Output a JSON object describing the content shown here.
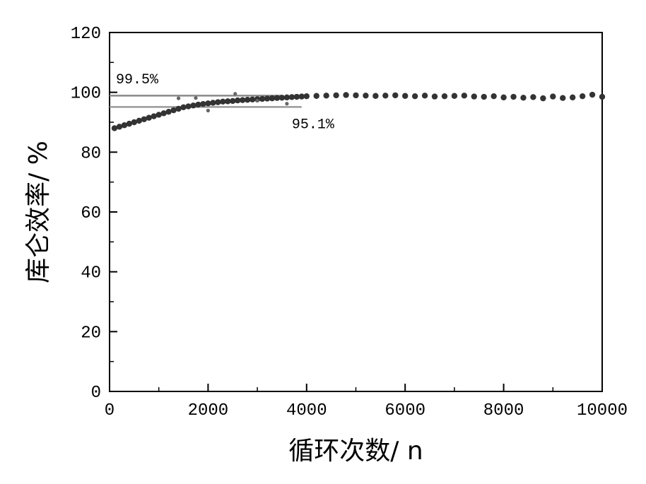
{
  "chart_data": {
    "type": "scatter",
    "xlabel": "循环次数/ n",
    "ylabel": "库仑效率/ %",
    "xlim": [
      0,
      10000
    ],
    "ylim": [
      0,
      120
    ],
    "x_ticks": [
      0,
      2000,
      4000,
      6000,
      8000,
      10000
    ],
    "y_ticks": [
      0,
      20,
      40,
      60,
      80,
      100,
      120
    ],
    "x_tick_labels": [
      "0",
      "2000",
      "4000",
      "6000",
      "8000",
      "10000"
    ],
    "y_tick_labels": [
      "0",
      "20",
      "40",
      "60",
      "80",
      "100",
      "120"
    ],
    "grid": false,
    "annotations": [
      {
        "text": "99.5%",
        "x": 130,
        "y": 103
      },
      {
        "text": "95.1%",
        "x": 3700,
        "y": 88
      }
    ],
    "reference_lines": [
      {
        "name": "99.5%",
        "x": [
          0,
          3500
        ],
        "y": [
          98.9,
          98.9
        ]
      },
      {
        "name": "95.1%",
        "x": [
          0,
          3900
        ],
        "y": [
          95.1,
          95.1
        ]
      }
    ],
    "series": [
      {
        "color": "#333333",
        "x": [
          100,
          200,
          300,
          400,
          500,
          600,
          700,
          800,
          900,
          1000,
          1100,
          1200,
          1300,
          1400,
          1500,
          1600,
          1700,
          1800,
          1900,
          2000,
          2100,
          2200,
          2300,
          2400,
          2500,
          2600,
          2700,
          2800,
          2900,
          3000,
          3100,
          3200,
          3300,
          3400,
          3500,
          3600,
          3700,
          3800,
          3900,
          4000,
          4200,
          4400,
          4600,
          4800,
          5000,
          5200,
          5400,
          5600,
          5800,
          6000,
          6200,
          6400,
          6600,
          6800,
          7000,
          7200,
          7400,
          7600,
          7800,
          8000,
          8200,
          8400,
          8600,
          8800,
          9000,
          9200,
          9400,
          9600,
          9800,
          10000
        ],
        "y": [
          88.0,
          88.5,
          89.0,
          89.5,
          90.0,
          90.5,
          91.0,
          91.5,
          92.0,
          92.5,
          93.0,
          93.5,
          94.0,
          94.5,
          95.0,
          95.3,
          95.6,
          95.9,
          96.1,
          96.3,
          96.5,
          96.7,
          96.9,
          97.0,
          97.1,
          97.3,
          97.4,
          97.5,
          97.6,
          97.7,
          97.8,
          97.9,
          98.0,
          98.1,
          98.2,
          98.3,
          98.4,
          98.5,
          98.6,
          98.7,
          98.8,
          98.9,
          99.0,
          99.1,
          99.0,
          98.9,
          98.8,
          98.9,
          99.0,
          98.8,
          98.7,
          98.9,
          98.6,
          98.7,
          98.8,
          98.9,
          98.6,
          98.5,
          98.7,
          98.3,
          98.5,
          98.2,
          98.4,
          98.0,
          98.6,
          98.1,
          98.3,
          98.7,
          99.2,
          98.5
        ]
      },
      {
        "color": "#666666",
        "x": [
          1400,
          1750,
          2000,
          2550,
          3000,
          3600
        ],
        "y": [
          98.0,
          98.1,
          93.9,
          99.5,
          97.2,
          96.2
        ]
      }
    ]
  }
}
